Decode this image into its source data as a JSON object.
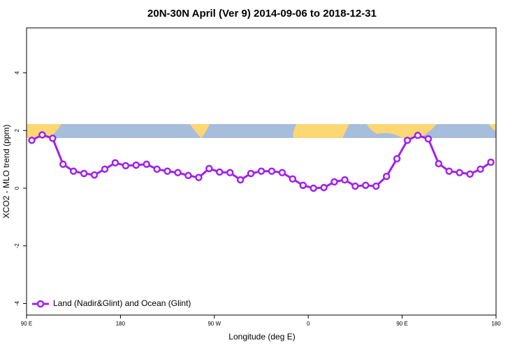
{
  "chart_data": {
    "type": "line",
    "title": "20N-30N April (Ver 9)   2014-09-06 to 2018-12-31",
    "x_label": "Longitude (deg E)",
    "y_label": "XCO2 - MLO trend (ppm)",
    "x": [
      95,
      105,
      115,
      125,
      135,
      145,
      155,
      165,
      175,
      185,
      195,
      205,
      215,
      225,
      235,
      245,
      255,
      265,
      275,
      285,
      295,
      305,
      315,
      325,
      335,
      345,
      355,
      365,
      375,
      385,
      395,
      405,
      415,
      425,
      435,
      445,
      455,
      465,
      475,
      485,
      495,
      505,
      515,
      525,
      535
    ],
    "series": [
      {
        "name": "Land (Nadir&Glint) and Ocean (Glint)",
        "color": "#a020f0",
        "values": [
          1.66,
          1.85,
          1.73,
          0.83,
          0.59,
          0.51,
          0.46,
          0.66,
          0.88,
          0.78,
          0.8,
          0.83,
          0.66,
          0.59,
          0.54,
          0.44,
          0.37,
          0.68,
          0.56,
          0.54,
          0.29,
          0.51,
          0.59,
          0.59,
          0.54,
          0.32,
          0.1,
          0.0,
          0.02,
          0.22,
          0.29,
          0.07,
          0.1,
          0.07,
          0.41,
          1.02,
          1.66,
          1.83,
          1.71,
          0.85,
          0.59,
          0.54,
          0.49,
          0.66,
          0.9
        ]
      }
    ],
    "xlim": [
      90,
      540
    ],
    "xticks": [
      {
        "value": 90,
        "label": "90 E"
      },
      180,
      {
        "value": 270,
        "label": "90 W"
      },
      {
        "value": 360,
        "label": "0"
      },
      {
        "value": 450,
        "label": "90 E"
      },
      {
        "value": 540,
        "label": "180"
      }
    ],
    "ylim": [
      -4.4,
      5.56
    ],
    "yticks": [
      -4,
      -2,
      0,
      2,
      4
    ],
    "legend": "bottom-left"
  }
}
